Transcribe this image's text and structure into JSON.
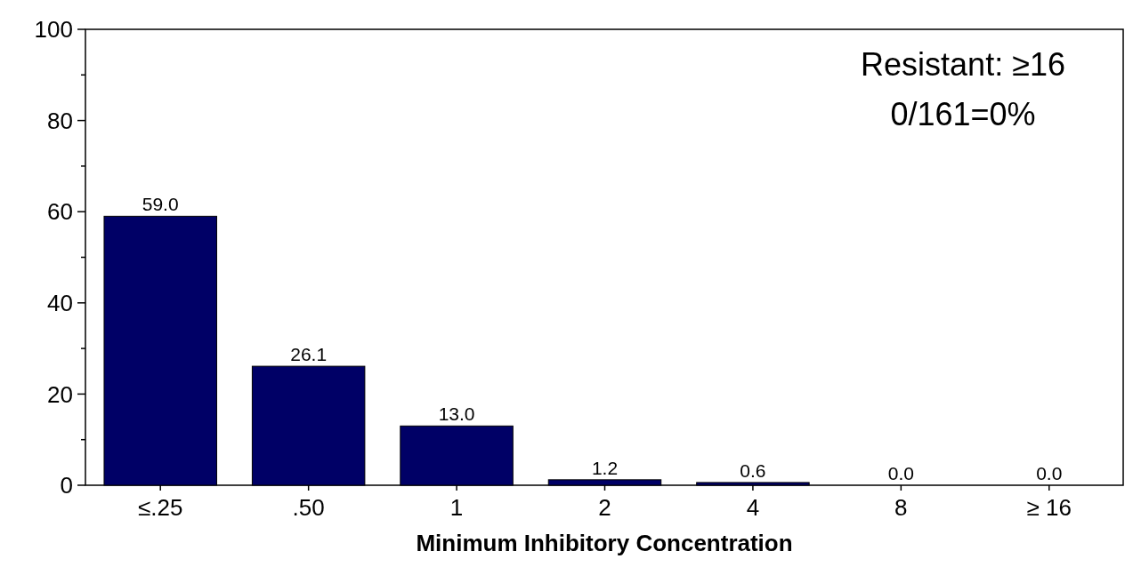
{
  "chart_data": {
    "type": "bar",
    "xlabel": "Minimum Inhibitory Concentration",
    "categories": [
      "≤.25",
      ".50",
      "1",
      "2",
      "4",
      "8",
      "≥ 16"
    ],
    "values": [
      59.0,
      26.1,
      13.0,
      1.2,
      0.6,
      0.0,
      0.0
    ],
    "value_labels": [
      "59.0",
      "26.1",
      "13.0",
      "1.2",
      "0.6",
      "0.0",
      "0.0"
    ],
    "color": "#000066",
    "ylim": [
      0,
      100
    ],
    "yticks": [
      0,
      {
        "value": 10,
        "label": null
      },
      20,
      {
        "value": 30,
        "label": null
      },
      40,
      {
        "value": 50,
        "label": null
      },
      60,
      {
        "value": 70,
        "label": null
      },
      80,
      {
        "value": 90,
        "label": null
      },
      100
    ],
    "annotations": [
      "Resistant: ≥16",
      "0/161=0%"
    ],
    "grid": false
  }
}
